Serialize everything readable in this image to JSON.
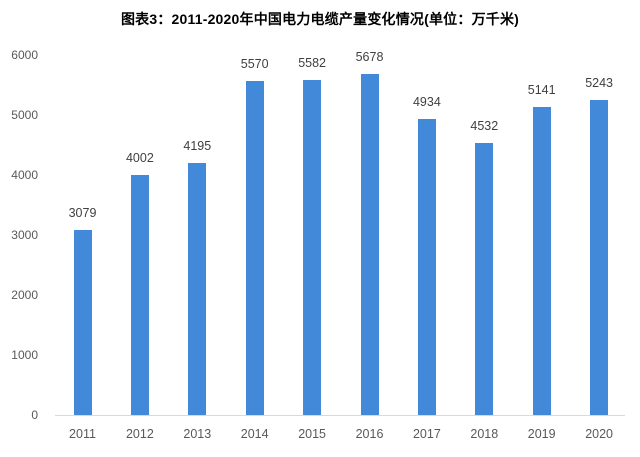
{
  "title": "图表3：2011-2020年中国电力电缆产量变化情况(单位：万千米)",
  "chart_data": {
    "type": "bar",
    "title": "图表3：2011-2020年中国电力电缆产量变化情况(单位：万千米)",
    "categories": [
      "2011",
      "2012",
      "2013",
      "2014",
      "2015",
      "2016",
      "2017",
      "2018",
      "2019",
      "2020"
    ],
    "values": [
      3079,
      4002,
      4195,
      5570,
      5582,
      5678,
      4934,
      4532,
      5141,
      5243
    ],
    "xlabel": "",
    "ylabel": "",
    "ylim": [
      0,
      6000
    ],
    "yticks": [
      0,
      1000,
      2000,
      3000,
      4000,
      5000,
      6000
    ],
    "grid": false,
    "legend": false,
    "value_labels_shown": true,
    "colors": {
      "bar": "#4389d9",
      "value_label": "#404040",
      "axis_tick_label": "#595959",
      "axis_line": "#d9d9d9",
      "title": "#000000",
      "background": "#ffffff"
    }
  }
}
